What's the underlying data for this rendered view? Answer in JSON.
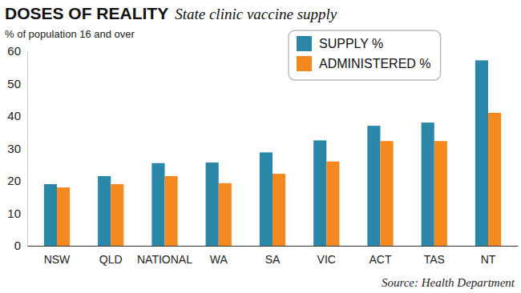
{
  "chart_data": {
    "type": "bar",
    "title": "DOSES OF REALITY",
    "subtitle": "State clinic vaccine supply",
    "y_label": "% of population 16 and over",
    "annotations": [
      "Source: Health Department"
    ],
    "categories": [
      "NSW",
      "QLD",
      "NATIONAL",
      "WA",
      "SA",
      "VIC",
      "ACT",
      "TAS",
      "NT"
    ],
    "series": [
      {
        "name": "SUPPLY %",
        "color": "#2a87a8",
        "values": [
          19,
          21.5,
          25.5,
          25.7,
          28.8,
          32.5,
          37,
          38,
          57.2
        ]
      },
      {
        "name": "ADMINISTERED %",
        "color": "#f5891f",
        "values": [
          18,
          19,
          21.5,
          19.3,
          22.2,
          26,
          32.3,
          32.3,
          41
        ]
      }
    ],
    "ylim": [
      0,
      60
    ],
    "yticks": [
      0,
      10,
      20,
      30,
      40,
      50,
      60
    ],
    "grid": false,
    "legend": "top-right"
  }
}
